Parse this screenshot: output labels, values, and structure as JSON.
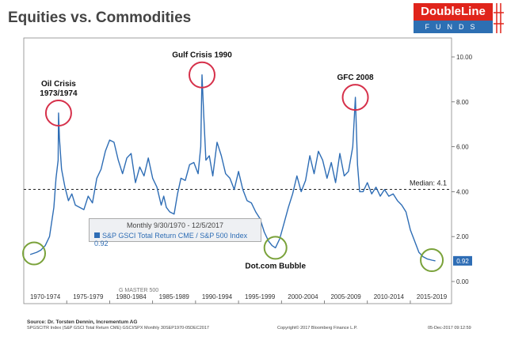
{
  "header": {
    "title": "Equities vs. Commodities",
    "logo_brand": "DoubleLine",
    "logo_sub": "FUNDS"
  },
  "legend": {
    "line1": "Monthly 9/30/1970 - 12/5/2017",
    "line2": "S&P GSCI Total Return CME / S&P 500 Index 0.92"
  },
  "footer": {
    "source": "Source: Dr. Torsten Dennin, Incrementum AG",
    "index": "SPGSCITR Index (S&P GSCI Total Return CME) GSCI/SPX Monthly 30SEP1970-05DEC2017",
    "copyright": "Copyright© 2017 Bloomberg Finance L.P.",
    "timestamp": "05-Dec-2017 09:12:59"
  },
  "watermark": "G MASTER 500",
  "colors": {
    "series": "#2e6db5",
    "annotation_circle_red": "#d6304a",
    "annotation_circle_green": "#7aa23a",
    "brand_red": "#e0241b",
    "brand_blue": "#2d6fb3"
  },
  "chart_data": {
    "type": "line",
    "title": "Equities vs. Commodities",
    "xlabel": "",
    "ylabel": "",
    "x_categories": [
      "1970-1974",
      "1975-1979",
      "1980-1984",
      "1985-1989",
      "1990-1994",
      "1995-1999",
      "2000-2004",
      "2005-2009",
      "2010-2014",
      "2015-2019"
    ],
    "y_ticks": [
      "0.00",
      "2.00",
      "4.00",
      "6.00",
      "8.00",
      "10.00"
    ],
    "ylim": [
      0,
      10
    ],
    "xlim": [
      1970.0,
      2019.8
    ],
    "y_axis_side": "right",
    "grid": false,
    "legend_position": "bottom-left",
    "series": [
      {
        "name": "S&P GSCI Total Return CME / S&P 500 Index",
        "last_value": "0.92",
        "x": [
          1970.75,
          1971.5,
          1972.0,
          1972.5,
          1973.0,
          1973.5,
          1973.75,
          1974.0,
          1974.05,
          1974.15,
          1974.4,
          1974.8,
          1975.2,
          1975.6,
          1976.0,
          1976.5,
          1977.0,
          1977.5,
          1978.0,
          1978.5,
          1979.0,
          1979.5,
          1980.0,
          1980.5,
          1981.0,
          1981.5,
          1982.0,
          1982.5,
          1983.0,
          1983.5,
          1984.0,
          1984.5,
          1985.0,
          1985.5,
          1986.0,
          1986.3,
          1986.6,
          1987.0,
          1987.5,
          1987.9,
          1988.3,
          1988.8,
          1989.3,
          1989.8,
          1990.3,
          1990.6,
          1990.75,
          1990.95,
          1991.2,
          1991.6,
          1992.0,
          1992.5,
          1993.0,
          1993.5,
          1994.0,
          1994.5,
          1995.0,
          1995.5,
          1996.0,
          1996.5,
          1997.0,
          1997.5,
          1998.0,
          1998.5,
          1998.9,
          1999.3,
          1999.8,
          2000.3,
          2000.8,
          2001.3,
          2001.8,
          2002.3,
          2002.8,
          2003.3,
          2003.8,
          2004.3,
          2004.8,
          2005.3,
          2005.8,
          2006.3,
          2006.8,
          2007.3,
          2007.8,
          2008.3,
          2008.6,
          2008.85,
          2009.1,
          2009.5,
          2010.0,
          2010.5,
          2011.0,
          2011.5,
          2012.0,
          2012.5,
          2013.0,
          2013.5,
          2014.0,
          2014.5,
          2015.0,
          2015.5,
          2016.0,
          2016.5,
          2017.0,
          2017.5,
          2017.92
        ],
        "y": [
          1.2,
          1.3,
          1.4,
          1.6,
          2.0,
          3.3,
          4.6,
          5.4,
          7.5,
          6.4,
          5.0,
          4.2,
          3.6,
          3.9,
          3.4,
          3.3,
          3.2,
          3.8,
          3.5,
          4.6,
          5.0,
          5.8,
          6.3,
          6.2,
          5.4,
          4.8,
          5.5,
          5.7,
          4.4,
          5.1,
          4.7,
          5.5,
          4.6,
          4.2,
          3.4,
          3.8,
          3.3,
          3.1,
          3.0,
          3.9,
          4.6,
          4.5,
          5.2,
          5.3,
          4.8,
          6.0,
          9.2,
          7.4,
          5.4,
          5.6,
          4.7,
          6.2,
          5.6,
          4.8,
          4.6,
          4.1,
          4.9,
          4.1,
          3.6,
          3.5,
          3.1,
          2.8,
          2.2,
          1.8,
          1.6,
          1.5,
          1.9,
          2.6,
          3.3,
          3.9,
          4.7,
          4.0,
          4.5,
          5.6,
          4.8,
          5.8,
          5.4,
          4.6,
          5.3,
          4.4,
          5.7,
          4.7,
          4.9,
          6.0,
          8.2,
          5.2,
          4.0,
          4.0,
          4.4,
          3.9,
          4.2,
          3.8,
          4.1,
          3.8,
          3.9,
          3.6,
          3.4,
          3.1,
          2.3,
          1.8,
          1.3,
          1.1,
          1.0,
          0.95,
          0.92
        ]
      }
    ],
    "reference_lines": [
      {
        "label": "Median: 4.1",
        "y": 4.1,
        "style": "dashed"
      }
    ],
    "annotations": [
      {
        "label": "Oil Crisis\n1973/1974",
        "x": 1974.05,
        "y": 7.5,
        "circle": "red"
      },
      {
        "label": "Gulf Crisis 1990",
        "x": 1990.75,
        "y": 9.2,
        "circle": "red"
      },
      {
        "label": "GFC 2008",
        "x": 2008.6,
        "y": 8.2,
        "circle": "red"
      },
      {
        "label": "Dot.com Bubble",
        "x": 1999.3,
        "y": 1.5,
        "circle": "green"
      },
      {
        "label": "",
        "x": 1971.2,
        "y": 1.25,
        "circle": "green"
      },
      {
        "label": "",
        "x": 2017.5,
        "y": 0.95,
        "circle": "green"
      }
    ]
  }
}
